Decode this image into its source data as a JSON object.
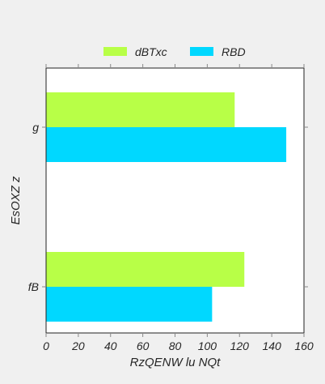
{
  "chart_data": {
    "type": "bar",
    "orientation": "horizontal",
    "title": "",
    "xlabel": "RzQENW lu NQt",
    "ylabel": "EsOXZ z",
    "categories": [
      "g",
      "fB"
    ],
    "series": [
      {
        "name": "dBTxc",
        "color": "#b8ff47",
        "values": [
          117,
          123
        ]
      },
      {
        "name": "RBD",
        "color": "#00d8ff",
        "values": [
          149,
          103
        ]
      }
    ],
    "xlim": [
      0,
      160
    ],
    "xticks": [
      0,
      20,
      40,
      60,
      80,
      100,
      120,
      140,
      160
    ],
    "grid": false,
    "legend": {
      "position": "top-center",
      "columns": 2
    },
    "background_color": "#f0f0f0",
    "plot_background_color": "#ffffff"
  }
}
